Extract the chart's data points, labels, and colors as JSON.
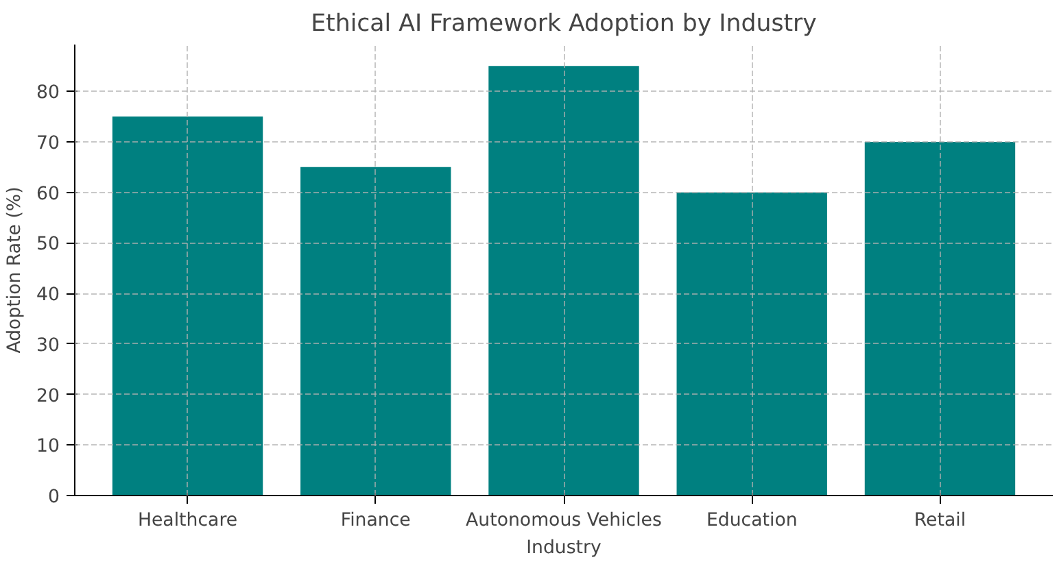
{
  "chart_data": {
    "type": "bar",
    "title": "Ethical AI Framework Adoption by Industry",
    "xlabel": "Industry",
    "ylabel": "Adoption Rate (%)",
    "categories": [
      "Healthcare",
      "Finance",
      "Autonomous Vehicles",
      "Education",
      "Retail"
    ],
    "values": [
      75,
      65,
      85,
      60,
      70
    ],
    "color": "#008080",
    "ylim": [
      0,
      89.25
    ],
    "yticks": [
      0,
      10,
      20,
      30,
      40,
      50,
      60,
      70,
      80
    ],
    "grid": true
  }
}
